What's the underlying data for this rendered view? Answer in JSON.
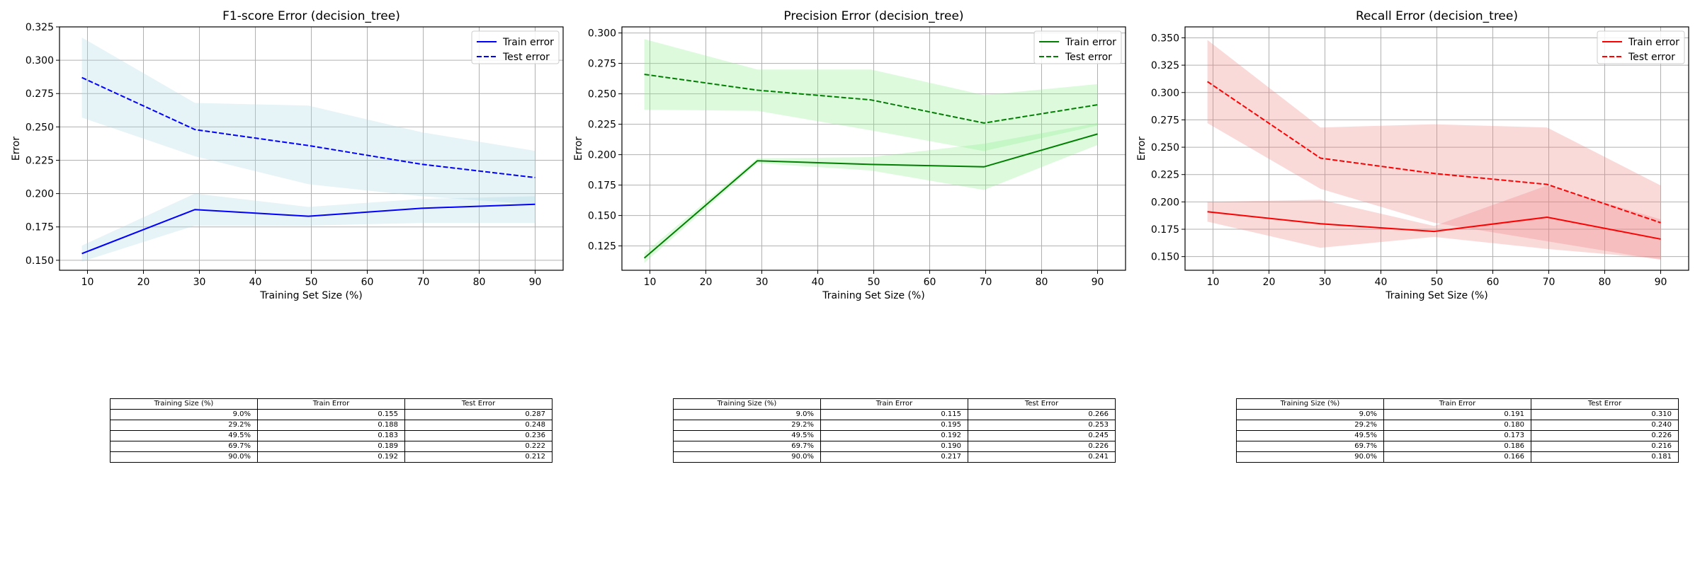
{
  "chart_data": [
    {
      "type": "line",
      "title": "F1-score Error (decision_tree)",
      "xlabel": "Training Set Size (%)",
      "ylabel": "Error",
      "xlim": [
        5,
        95
      ],
      "ylim": [
        0.1425,
        0.325
      ],
      "xticks": [
        "10",
        "20",
        "30",
        "40",
        "50",
        "60",
        "70",
        "80",
        "90"
      ],
      "yticks": [
        "0.150",
        "0.175",
        "0.200",
        "0.225",
        "0.250",
        "0.275",
        "0.300",
        "0.325"
      ],
      "grid": true,
      "legend_position": "top-right",
      "color": "#0000ff",
      "band_color": "#add8e6",
      "x": [
        9.0,
        29.2,
        49.5,
        69.7,
        90.0
      ],
      "series": [
        {
          "name": "Train error",
          "style": "solid",
          "values": [
            0.155,
            0.188,
            0.183,
            0.189,
            0.192
          ],
          "lower": [
            0.149,
            0.176,
            0.176,
            0.178,
            0.178
          ],
          "upper": [
            0.161,
            0.2,
            0.19,
            0.196,
            0.198
          ]
        },
        {
          "name": "Test error",
          "style": "dashed",
          "values": [
            0.287,
            0.248,
            0.236,
            0.222,
            0.212
          ],
          "lower": [
            0.257,
            0.228,
            0.207,
            0.198,
            0.192
          ],
          "upper": [
            0.317,
            0.268,
            0.266,
            0.246,
            0.232
          ]
        }
      ],
      "table": {
        "headers": [
          "Training Size (%)",
          "Train Error",
          "Test Error"
        ],
        "rows": [
          [
            "9.0%",
            "0.155",
            "0.287"
          ],
          [
            "29.2%",
            "0.188",
            "0.248"
          ],
          [
            "49.5%",
            "0.183",
            "0.236"
          ],
          [
            "69.7%",
            "0.189",
            "0.222"
          ],
          [
            "90.0%",
            "0.192",
            "0.212"
          ]
        ]
      }
    },
    {
      "type": "line",
      "title": "Precision Error (decision_tree)",
      "xlabel": "Training Set Size (%)",
      "ylabel": "Error",
      "xlim": [
        5,
        95
      ],
      "ylim": [
        0.105,
        0.305
      ],
      "xticks": [
        "10",
        "20",
        "30",
        "40",
        "50",
        "60",
        "70",
        "80",
        "90"
      ],
      "yticks": [
        "0.125",
        "0.150",
        "0.175",
        "0.200",
        "0.225",
        "0.250",
        "0.275",
        "0.300"
      ],
      "grid": true,
      "legend_position": "top-right",
      "color": "#008000",
      "band_color": "#90ee90",
      "x": [
        9.0,
        29.2,
        49.5,
        69.7,
        90.0
      ],
      "series": [
        {
          "name": "Train error",
          "style": "solid",
          "values": [
            0.115,
            0.195,
            0.192,
            0.19,
            0.217
          ],
          "lower": [
            0.111,
            0.193,
            0.187,
            0.171,
            0.208
          ],
          "upper": [
            0.119,
            0.197,
            0.198,
            0.209,
            0.226
          ]
        },
        {
          "name": "Test error",
          "style": "dashed",
          "values": [
            0.266,
            0.253,
            0.245,
            0.226,
            0.241
          ],
          "lower": [
            0.237,
            0.236,
            0.22,
            0.203,
            0.224
          ],
          "upper": [
            0.295,
            0.27,
            0.27,
            0.249,
            0.258
          ]
        }
      ],
      "table": {
        "headers": [
          "Training Size (%)",
          "Train Error",
          "Test Error"
        ],
        "rows": [
          [
            "9.0%",
            "0.115",
            "0.266"
          ],
          [
            "29.2%",
            "0.195",
            "0.253"
          ],
          [
            "49.5%",
            "0.192",
            "0.245"
          ],
          [
            "69.7%",
            "0.190",
            "0.226"
          ],
          [
            "90.0%",
            "0.217",
            "0.241"
          ]
        ]
      }
    },
    {
      "type": "line",
      "title": "Recall Error (decision_tree)",
      "xlabel": "Training Set Size (%)",
      "ylabel": "Error",
      "xlim": [
        5,
        95
      ],
      "ylim": [
        0.1375,
        0.36
      ],
      "xticks": [
        "10",
        "20",
        "30",
        "40",
        "50",
        "60",
        "70",
        "80",
        "90"
      ],
      "yticks": [
        "0.150",
        "0.175",
        "0.200",
        "0.225",
        "0.250",
        "0.275",
        "0.300",
        "0.325",
        "0.350"
      ],
      "grid": true,
      "legend_position": "top-right",
      "color": "#ff0000",
      "band_color": "#f08080",
      "x": [
        9.0,
        29.2,
        49.5,
        69.7,
        90.0
      ],
      "series": [
        {
          "name": "Train error",
          "style": "solid",
          "values": [
            0.191,
            0.18,
            0.173,
            0.186,
            0.166
          ],
          "lower": [
            0.182,
            0.158,
            0.168,
            0.157,
            0.148
          ],
          "upper": [
            0.2,
            0.202,
            0.178,
            0.215,
            0.184
          ]
        },
        {
          "name": "Test error",
          "style": "dashed",
          "values": [
            0.31,
            0.24,
            0.226,
            0.216,
            0.181
          ],
          "lower": [
            0.272,
            0.212,
            0.181,
            0.164,
            0.147
          ],
          "upper": [
            0.348,
            0.268,
            0.271,
            0.268,
            0.215
          ]
        }
      ],
      "table": {
        "headers": [
          "Training Size (%)",
          "Train Error",
          "Test Error"
        ],
        "rows": [
          [
            "9.0%",
            "0.191",
            "0.310"
          ],
          [
            "29.2%",
            "0.180",
            "0.240"
          ],
          [
            "49.5%",
            "0.173",
            "0.226"
          ],
          [
            "69.7%",
            "0.186",
            "0.216"
          ],
          [
            "90.0%",
            "0.166",
            "0.181"
          ]
        ]
      }
    }
  ]
}
